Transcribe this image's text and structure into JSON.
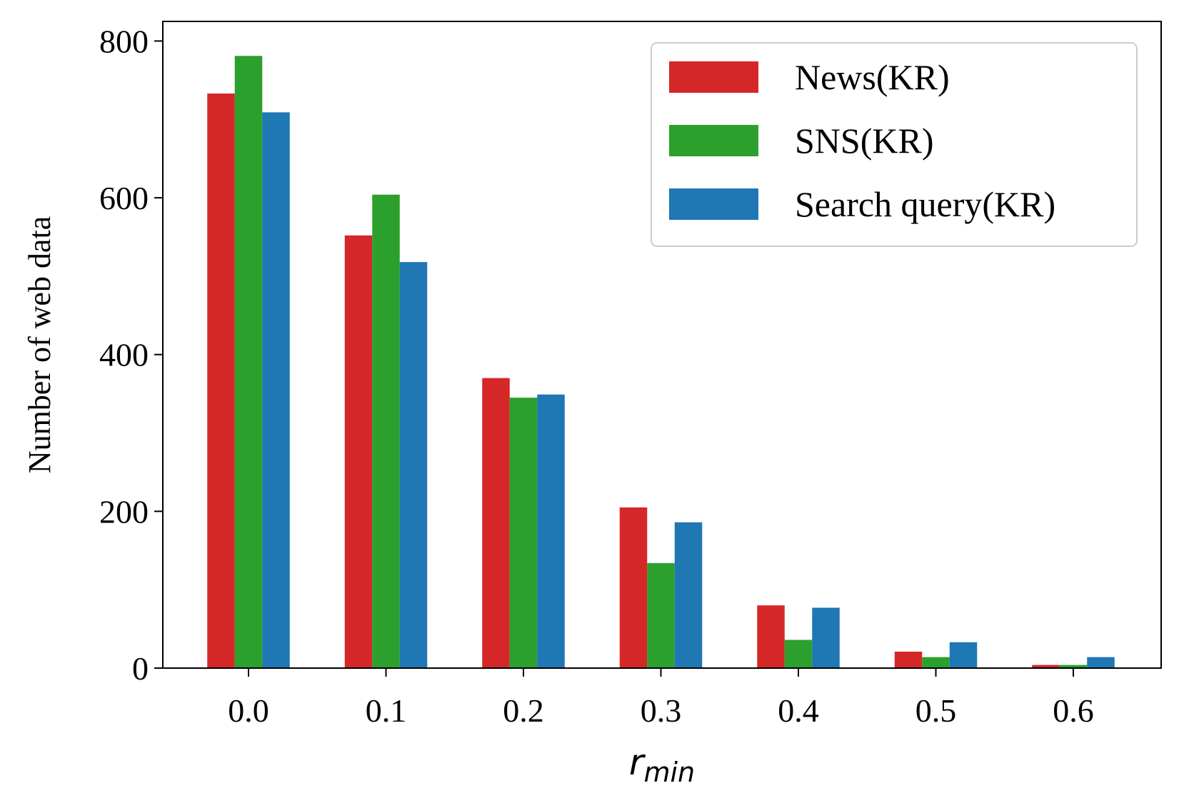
{
  "chart_data": {
    "type": "bar",
    "categories": [
      "0.0",
      "0.1",
      "0.2",
      "0.3",
      "0.4",
      "0.5",
      "0.6"
    ],
    "series": [
      {
        "name": "News(KR)",
        "color": "#d62728",
        "values": [
          733,
          552,
          370,
          205,
          80,
          21,
          4
        ]
      },
      {
        "name": "SNS(KR)",
        "color": "#2ca02c",
        "values": [
          781,
          604,
          345,
          134,
          36,
          14,
          4
        ]
      },
      {
        "name": "Search query(KR)",
        "color": "#1f77b4",
        "values": [
          709,
          518,
          349,
          186,
          77,
          33,
          14
        ]
      }
    ],
    "title": "",
    "xlabel": {
      "main": "r",
      "subscript": "min"
    },
    "ylabel": "Number of web data",
    "ylim": [
      0,
      825
    ],
    "yticks": [
      "0",
      "200",
      "400",
      "600",
      "800"
    ],
    "grid": false,
    "legend_position": "top-right"
  }
}
